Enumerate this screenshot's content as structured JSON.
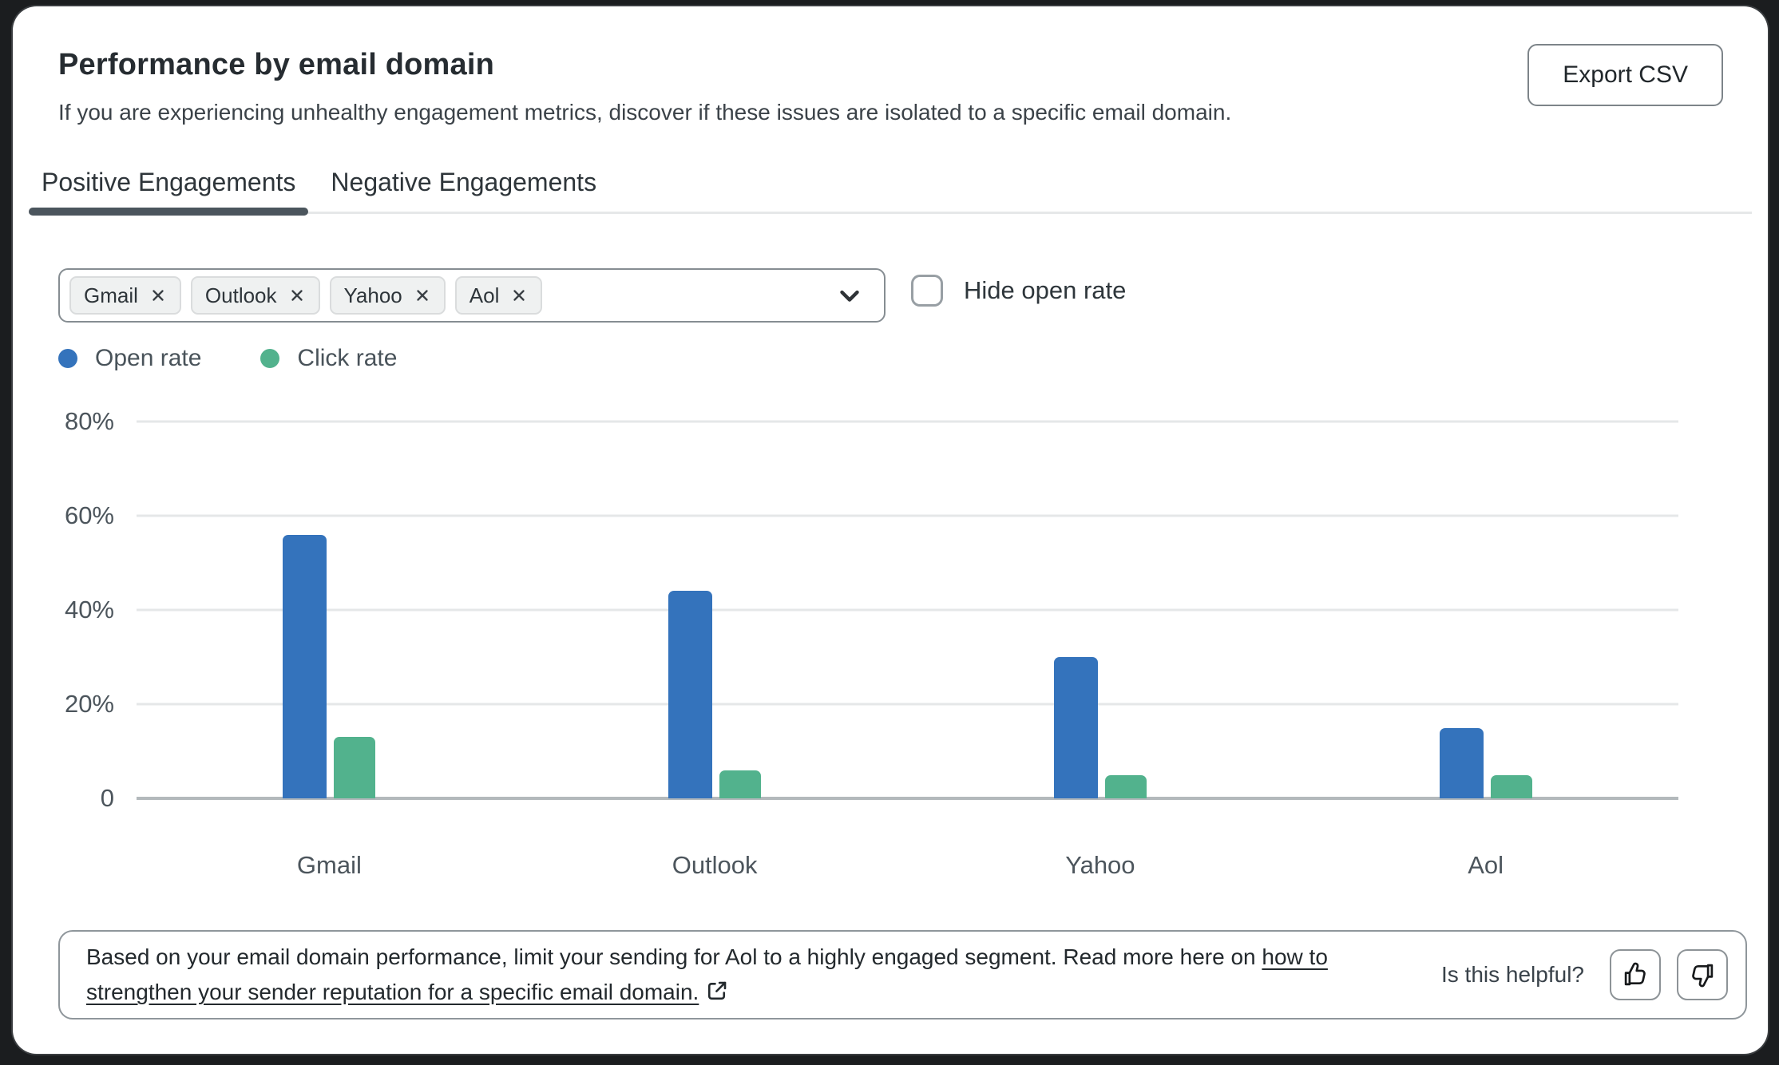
{
  "header": {
    "title": "Performance by email domain",
    "subtitle": "If you are experiencing unhealthy engagement metrics, discover if these issues are isolated to a specific email domain.",
    "export_label": "Export CSV"
  },
  "tabs": [
    {
      "label": "Positive Engagements",
      "active": true
    },
    {
      "label": "Negative Engagements",
      "active": false
    }
  ],
  "filter": {
    "chips": [
      "Gmail",
      "Outlook",
      "Yahoo",
      "Aol"
    ],
    "chevron_icon": "chevron-down"
  },
  "controls": {
    "hide_open_rate_label": "Hide open rate",
    "checkbox_checked": false
  },
  "chart_data": {
    "type": "bar",
    "categories": [
      "Gmail",
      "Outlook",
      "Yahoo",
      "Aol"
    ],
    "series": [
      {
        "name": "Open rate",
        "color": "#3473BC",
        "values": [
          56,
          44,
          30,
          15
        ]
      },
      {
        "name": "Click rate",
        "color": "#52B28D",
        "values": [
          13,
          6,
          5,
          5
        ]
      }
    ],
    "title": "",
    "xlabel": "",
    "ylabel": "",
    "y_ticks": [
      "80%",
      "60%",
      "40%",
      "20%",
      "0"
    ],
    "ylim": [
      0,
      80
    ],
    "grid": true,
    "legend_position": "top-left"
  },
  "footer": {
    "note_prefix": "Based on your email domain performance, limit your sending for Aol to a highly engaged segment. Read more here on ",
    "link_text": "how to strengthen your sender reputation for a specific email domain.",
    "external_link_icon": "external-link",
    "helpful_label": "Is this helpful?",
    "thumbs_up_icon": "thumbs-up",
    "thumbs_down_icon": "thumbs-down"
  },
  "colors": {
    "open_rate": "#3473BC",
    "click_rate": "#52B28D",
    "active_tab_underline": "#4b555d",
    "gridline": "#e5e7e8",
    "zero_axis": "#b3b9bc",
    "card_background": "#ffffff",
    "outer_background": "#1b1d1f"
  }
}
